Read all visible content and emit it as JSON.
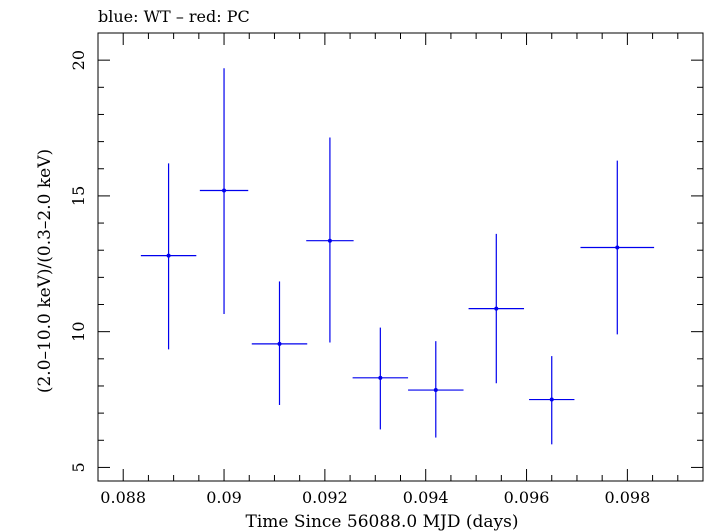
{
  "chart_data": {
    "type": "scatter",
    "title": "blue: WT – red: PC",
    "xlabel": "Time Since 56088.0 MJD (days)",
    "ylabel": "(2.0–10.0 keV)/(0.3–2.0 keV)",
    "xlim": [
      0.0875,
      0.0995
    ],
    "ylim": [
      4.5,
      21
    ],
    "x_ticks": [
      0.088,
      0.09,
      0.092,
      0.094,
      0.096,
      0.098
    ],
    "x_tick_labels": [
      "0.088",
      "0.09",
      "0.092",
      "0.094",
      "0.096",
      "0.098"
    ],
    "y_ticks": [
      5,
      10,
      15,
      20
    ],
    "y_tick_labels": [
      "5",
      "10",
      "15",
      "20"
    ],
    "series": [
      {
        "name": "WT",
        "color": "#0000ee",
        "points": [
          {
            "x": 0.0889,
            "y": 12.8,
            "xerr": 0.00055,
            "yerr_low": 3.45,
            "yerr_high": 3.4
          },
          {
            "x": 0.09,
            "y": 15.2,
            "xerr": 0.00048,
            "yerr_low": 4.55,
            "yerr_high": 4.5
          },
          {
            "x": 0.0911,
            "y": 9.55,
            "xerr": 0.00055,
            "yerr_low": 2.25,
            "yerr_high": 2.3
          },
          {
            "x": 0.0921,
            "y": 13.35,
            "xerr": 0.00047,
            "yerr_low": 3.75,
            "yerr_high": 3.8
          },
          {
            "x": 0.0931,
            "y": 8.3,
            "xerr": 0.00055,
            "yerr_low": 1.9,
            "yerr_high": 1.85
          },
          {
            "x": 0.0942,
            "y": 7.85,
            "xerr": 0.00055,
            "yerr_low": 1.75,
            "yerr_high": 1.8
          },
          {
            "x": 0.0954,
            "y": 10.85,
            "xerr": 0.00055,
            "yerr_low": 2.75,
            "yerr_high": 2.75
          },
          {
            "x": 0.0965,
            "y": 7.5,
            "xerr": 0.00045,
            "yerr_low": 1.65,
            "yerr_high": 1.6
          },
          {
            "x": 0.0978,
            "y": 13.1,
            "xerr": 0.00073,
            "yerr_low": 3.2,
            "yerr_high": 3.2
          }
        ]
      }
    ],
    "grid": false
  }
}
